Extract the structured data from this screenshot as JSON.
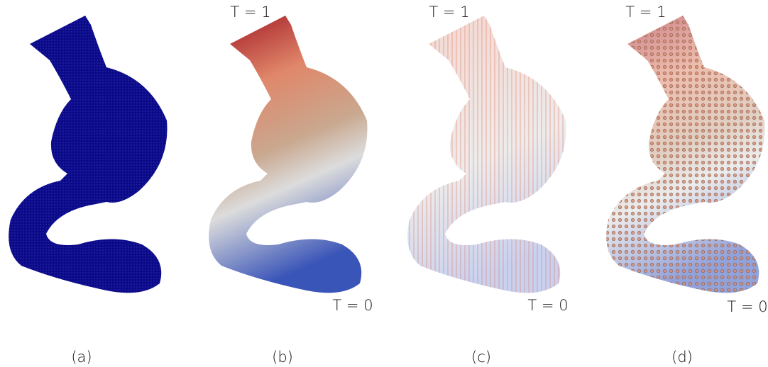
{
  "panels": [
    {
      "caption": "(a)"
    },
    {
      "caption": "(b)",
      "top_label": "T = 1",
      "bottom_label": "T = 0"
    },
    {
      "caption": "(c)",
      "top_label": "T = 1",
      "bottom_label": "T = 0"
    },
    {
      "caption": "(d)",
      "top_label": "T = 1",
      "bottom_label": "T = 0"
    }
  ]
}
